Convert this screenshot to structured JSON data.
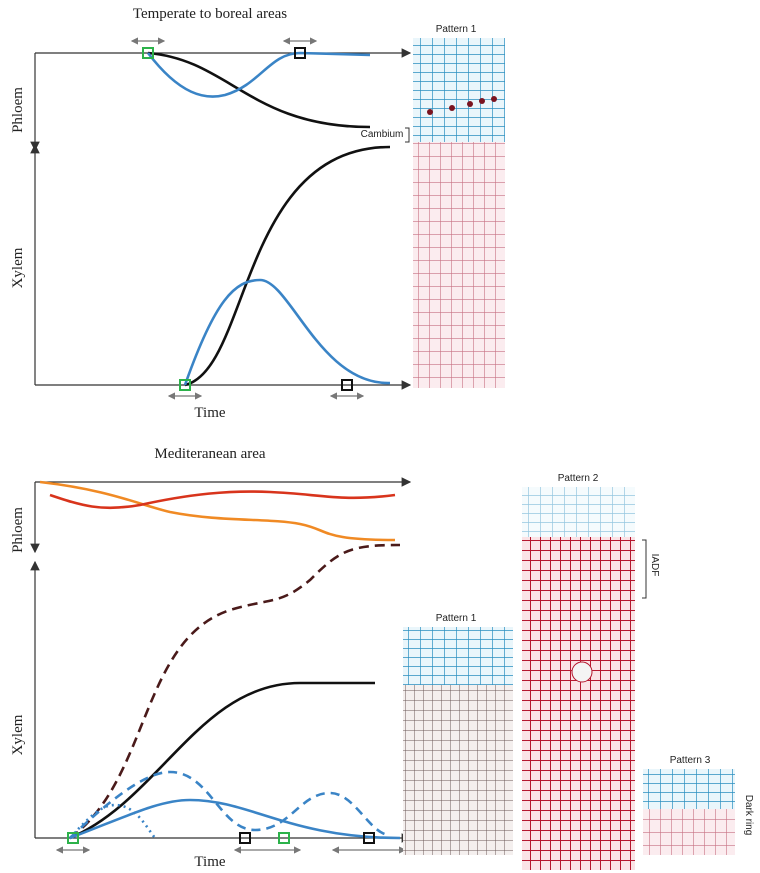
{
  "panels": [
    {
      "title": "Temperate to boreal areas",
      "phloem_label": "Phloem",
      "xylem_label": "Xylem",
      "time_label": "Time",
      "micrographs": [
        {
          "label": "Pattern 1",
          "annotation": "Cambium"
        }
      ]
    },
    {
      "title": "Mediteranean area",
      "phloem_label": "Phloem",
      "xylem_label": "Xylem",
      "time_label": "Time",
      "micrographs": [
        {
          "label": "Pattern 1"
        },
        {
          "label": "Pattern 2",
          "annotation": "IADF"
        },
        {
          "label": "Pattern 3",
          "annotation": "Dark ring"
        }
      ]
    }
  ]
}
